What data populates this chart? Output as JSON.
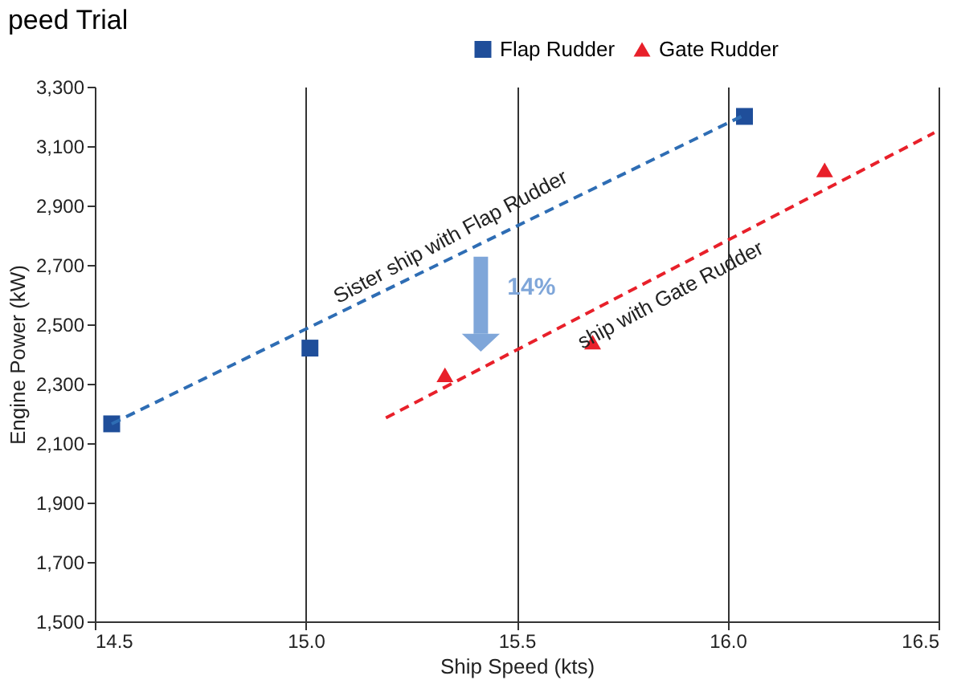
{
  "chart_data": {
    "type": "scatter",
    "title": "peed Trial",
    "xlabel": "Ship Speed (kts)",
    "ylabel": "Engine Power (kW)",
    "xlim": [
      14.5,
      16.5
    ],
    "xticks": [
      {
        "value": 14.5,
        "label": "14.5"
      },
      {
        "value": 15,
        "label": "15.0"
      },
      {
        "value": 15.5,
        "label": "15.5"
      },
      {
        "value": 16,
        "label": "16.0"
      },
      {
        "value": 16.5,
        "label": "16.5"
      }
    ],
    "ylim": [
      1500,
      3300
    ],
    "yticks": [
      {
        "value": 1500,
        "label": "1,500"
      },
      {
        "value": 1700,
        "label": "1,700"
      },
      {
        "value": 1900,
        "label": "1,900"
      },
      {
        "value": 2100,
        "label": "2,100"
      },
      {
        "value": 2300,
        "label": "2,300"
      },
      {
        "value": 2500,
        "label": "2,500"
      },
      {
        "value": 2700,
        "label": "2,700"
      },
      {
        "value": 2900,
        "label": "2,900"
      },
      {
        "value": 3100,
        "label": "3,100"
      },
      {
        "value": 3300,
        "label": "3,300"
      }
    ],
    "grid": "x",
    "legend": "top right",
    "series": [
      {
        "name": "Flap Rudder",
        "marker": "square",
        "color": "#1f4e9a",
        "x": [
          14.54,
          15.01,
          16.04
        ],
        "values": [
          2165,
          2420,
          3200
        ]
      },
      {
        "name": "Gate Rudder",
        "marker": "triangle",
        "color": "#e8202a",
        "x": [
          15.33,
          15.68,
          16.23
        ],
        "values": [
          2330,
          2440,
          3020
        ]
      },
      {
        "type": "line",
        "line_style": "dashed",
        "color": "#2e6db4",
        "x": [
          14.54,
          16.04
        ],
        "values": [
          2165,
          3205
        ]
      },
      {
        "type": "line",
        "line_style": "dashed",
        "color": "#e8202a",
        "x": [
          15.19,
          16.49
        ],
        "values": [
          2185,
          3145
        ]
      }
    ],
    "annotations": [
      "Sister ship with Flap Rudder",
      "14%",
      "ship with Gate Rudder"
    ]
  }
}
